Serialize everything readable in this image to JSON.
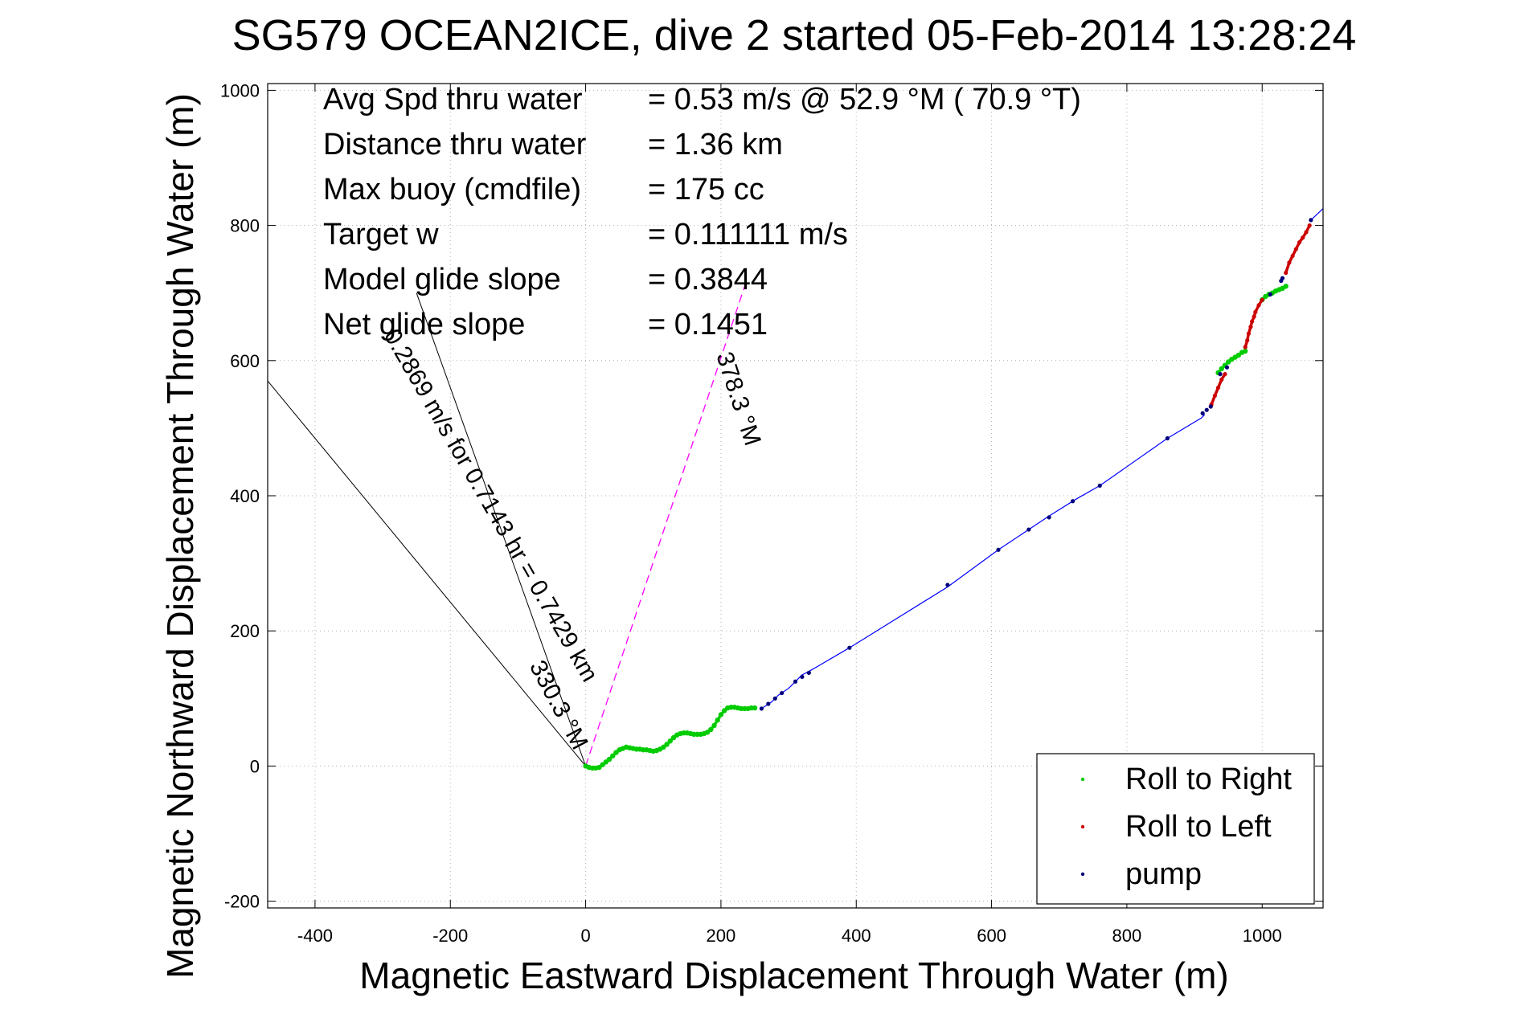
{
  "chart_data": {
    "type": "scatter",
    "title": "SG579 OCEAN2ICE, dive 2 started 05-Feb-2014 13:28:24",
    "xlabel": "Magnetic Eastward Displacement Through Water (m)",
    "ylabel": "Magnetic Northward Displacement Through Water (m)",
    "xlim": [
      -470,
      1090
    ],
    "ylim": [
      -210,
      1010
    ],
    "xticks": [
      -400,
      -200,
      0,
      200,
      400,
      600,
      800,
      1000
    ],
    "yticks": [
      -200,
      0,
      200,
      400,
      600,
      800,
      1000
    ],
    "grid": true,
    "legend_position": "bottom-right",
    "colors": {
      "roll_right": "#00cc00",
      "roll_left": "#cc0000",
      "pump": "#00007a",
      "track_line": "#0000ff",
      "heading_line": "#ff00ff",
      "current_line": "#000000"
    },
    "stats": [
      {
        "label": "Avg Spd thru water",
        "value": "=  0.53 m/s @  52.9 °M ( 70.9 °T)"
      },
      {
        "label": "Distance thru water",
        "value": "=  1.36 km"
      },
      {
        "label": "Max buoy (cmdfile)",
        "value": "= 175 cc"
      },
      {
        "label": "Target w",
        "value": "= 0.111111 m/s"
      },
      {
        "label": "Model glide slope",
        "value": "= 0.3844"
      },
      {
        "label": "Net glide slope",
        "value": "= 0.1451"
      }
    ],
    "annotations": [
      {
        "text": "378.3 °M",
        "x": 215,
        "y": 540,
        "angle": 72
      },
      {
        "text": "330.3 °M",
        "x": -50,
        "y": 85,
        "angle": 62
      },
      {
        "text": "0.2869 m/s for 0.7143 hr = 0.7429 km",
        "x": -150,
        "y": 380,
        "angle": 60
      }
    ],
    "heading_line": {
      "x": [
        0,
        235
      ],
      "y": [
        0,
        710
      ]
    },
    "current_lines": [
      {
        "x": [
          0,
          -250
        ],
        "y": [
          0,
          700
        ]
      },
      {
        "x": [
          0,
          -470
        ],
        "y": [
          0,
          570
        ]
      }
    ],
    "track_line": {
      "x": [
        260,
        275,
        285,
        300,
        310,
        320,
        330,
        390,
        535,
        610,
        655,
        685,
        725,
        760,
        860,
        910,
        915
      ],
      "y": [
        85,
        95,
        105,
        115,
        125,
        135,
        140,
        175,
        265,
        320,
        350,
        370,
        395,
        415,
        485,
        515,
        520
      ]
    },
    "series": [
      {
        "name": "Roll to Right",
        "x": [
          0,
          5,
          10,
          15,
          20,
          25,
          30,
          35,
          40,
          45,
          50,
          55,
          60,
          65,
          70,
          75,
          80,
          85,
          90,
          95,
          100,
          105,
          110,
          115,
          120,
          125,
          130,
          135,
          140,
          145,
          150,
          155,
          160,
          165,
          170,
          175,
          180,
          185,
          190,
          195,
          200,
          205,
          210,
          215,
          220,
          225,
          230,
          235,
          240,
          245,
          250,
          935,
          940,
          945,
          950,
          955,
          960,
          965,
          970,
          975,
          1000,
          1005,
          1010,
          1015,
          1020,
          1025,
          1030,
          1035
        ],
        "y": [
          0,
          -2,
          -3,
          -3,
          -2,
          2,
          6,
          10,
          15,
          20,
          24,
          26,
          28,
          27,
          26,
          25,
          25,
          24,
          24,
          23,
          22,
          23,
          25,
          28,
          32,
          37,
          42,
          46,
          48,
          49,
          49,
          48,
          47,
          47,
          47,
          48,
          50,
          54,
          60,
          68,
          76,
          82,
          86,
          87,
          87,
          86,
          85,
          85,
          85,
          86,
          86,
          582,
          588,
          593,
          598,
          602,
          605,
          608,
          612,
          614,
          690,
          695,
          698,
          700,
          703,
          705,
          707,
          710
        ]
      },
      {
        "name": "Roll to Left",
        "x": [
          925,
          930,
          935,
          940,
          945,
          975,
          978,
          980,
          983,
          985,
          988,
          990,
          995,
          1000,
          1035,
          1040,
          1045,
          1050,
          1055,
          1060,
          1065,
          1070
        ],
        "y": [
          535,
          548,
          560,
          572,
          580,
          620,
          630,
          640,
          650,
          658,
          665,
          672,
          682,
          690,
          730,
          745,
          755,
          765,
          775,
          782,
          790,
          800
        ]
      },
      {
        "name": "pump",
        "x": [
          260,
          270,
          280,
          290,
          310,
          320,
          330,
          390,
          535,
          610,
          655,
          685,
          720,
          760,
          860,
          912,
          918,
          924,
          938,
          948,
          1012,
          1028,
          1030,
          1072
        ],
        "y": [
          85,
          92,
          100,
          108,
          125,
          132,
          138,
          175,
          268,
          320,
          350,
          368,
          392,
          415,
          485,
          522,
          527,
          532,
          580,
          590,
          698,
          718,
          722,
          808
        ]
      }
    ]
  }
}
